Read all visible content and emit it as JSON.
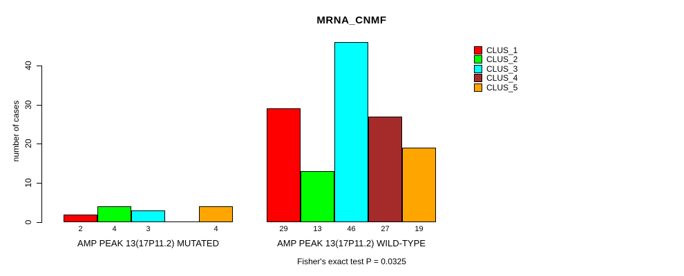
{
  "chart_data": {
    "type": "bar",
    "title": "MRNA_CNMF",
    "ylabel": "number of cases",
    "xlabel": "",
    "ylim": [
      0,
      46
    ],
    "yticks": [
      0,
      10,
      20,
      30,
      40
    ],
    "grid": false,
    "legend_position": "right",
    "series_colors": [
      "#FF0000",
      "#00FF00",
      "#00FFFF",
      "#A52A2A",
      "#FFA500"
    ],
    "legend": [
      {
        "label": "CLUS_1",
        "color": "#FF0000"
      },
      {
        "label": "CLUS_2",
        "color": "#00FF00"
      },
      {
        "label": "CLUS_3",
        "color": "#00FFFF"
      },
      {
        "label": "CLUS_4",
        "color": "#A52A2A"
      },
      {
        "label": "CLUS_5",
        "color": "#FFA500"
      }
    ],
    "groups": [
      {
        "label": "AMP PEAK 13(17P11.2) MUTATED",
        "values": [
          2,
          4,
          3,
          0,
          4
        ],
        "bar_labels": [
          "2",
          "4",
          "3",
          "",
          "4"
        ]
      },
      {
        "label": "AMP PEAK 13(17P11.2) WILD-TYPE",
        "values": [
          29,
          13,
          46,
          27,
          19
        ],
        "bar_labels": [
          "29",
          "13",
          "46",
          "27",
          "19"
        ]
      }
    ],
    "caption": "Fisher's exact test P = 0.0325"
  }
}
